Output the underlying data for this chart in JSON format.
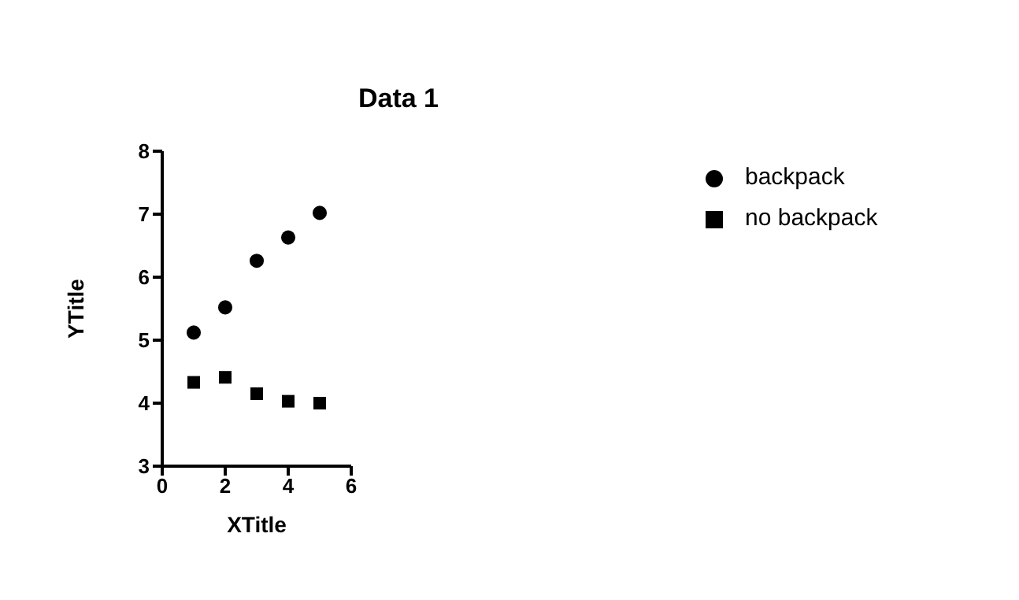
{
  "chart_data": {
    "type": "scatter",
    "title": "Data 1",
    "xlabel": "XTitle",
    "ylabel": "YTitle",
    "x": [
      1,
      2,
      3,
      4,
      5
    ],
    "series": [
      {
        "name": "backpack",
        "color": "#000000",
        "marker": "circle",
        "values": [
          5.12,
          5.52,
          6.26,
          6.63,
          7.02
        ]
      },
      {
        "name": "no backpack",
        "color": "#000000",
        "marker": "square",
        "values": [
          4.33,
          4.41,
          4.15,
          4.03,
          4.0
        ]
      }
    ],
    "xlim": [
      0,
      6
    ],
    "xticks": [
      0,
      2,
      4,
      6
    ],
    "ylim": [
      3,
      8
    ],
    "yticks": [
      3,
      4,
      5,
      6,
      7,
      8
    ],
    "grid": false,
    "legend": "top right"
  }
}
